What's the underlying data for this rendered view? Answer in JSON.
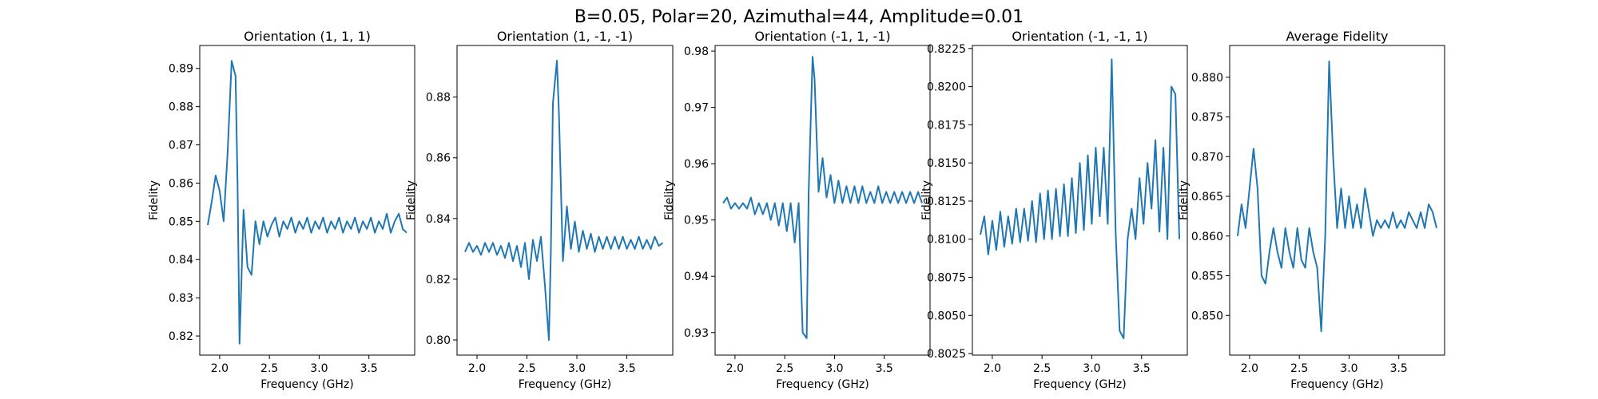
{
  "figure": {
    "suptitle": "B=0.05, Polar=20, Azimuthal=44, Amplitude=0.01"
  },
  "colors": {
    "line": "#1f77b4"
  },
  "chart_data": [
    {
      "type": "line",
      "title": "Orientation (1, 1, 1)",
      "xlabel": "Frequency (GHz)",
      "ylabel": "Fidelity",
      "xlim": [
        1.8,
        3.96
      ],
      "ylim": [
        0.815,
        0.896
      ],
      "xticks": [
        {
          "v": 2.0,
          "label": "2.0"
        },
        {
          "v": 2.5,
          "label": "2.5"
        },
        {
          "v": 3.0,
          "label": "3.0"
        },
        {
          "v": 3.5,
          "label": "3.5"
        }
      ],
      "yticks": [
        {
          "v": 0.82,
          "label": "0.82"
        },
        {
          "v": 0.83,
          "label": "0.83"
        },
        {
          "v": 0.84,
          "label": "0.84"
        },
        {
          "v": 0.85,
          "label": "0.85"
        },
        {
          "v": 0.86,
          "label": "0.86"
        },
        {
          "v": 0.87,
          "label": "0.87"
        },
        {
          "v": 0.88,
          "label": "0.88"
        },
        {
          "v": 0.89,
          "label": "0.89"
        }
      ],
      "series": [
        {
          "x": [
            1.88,
            1.92,
            1.96,
            2.0,
            2.04,
            2.08,
            2.12,
            2.16,
            2.18,
            2.2,
            2.24,
            2.28,
            2.32,
            2.36,
            2.4,
            2.44,
            2.48,
            2.52,
            2.56,
            2.6,
            2.64,
            2.68,
            2.72,
            2.76,
            2.8,
            2.84,
            2.88,
            2.92,
            2.96,
            3.0,
            3.04,
            3.08,
            3.12,
            3.16,
            3.2,
            3.24,
            3.28,
            3.32,
            3.36,
            3.4,
            3.44,
            3.48,
            3.52,
            3.56,
            3.6,
            3.64,
            3.68,
            3.72,
            3.76,
            3.8,
            3.84,
            3.88
          ],
          "y": [
            0.849,
            0.855,
            0.862,
            0.858,
            0.85,
            0.868,
            0.892,
            0.888,
            0.86,
            0.818,
            0.853,
            0.838,
            0.836,
            0.85,
            0.844,
            0.85,
            0.846,
            0.849,
            0.851,
            0.846,
            0.85,
            0.848,
            0.851,
            0.847,
            0.85,
            0.848,
            0.851,
            0.847,
            0.85,
            0.848,
            0.851,
            0.847,
            0.85,
            0.848,
            0.851,
            0.847,
            0.85,
            0.848,
            0.851,
            0.847,
            0.85,
            0.848,
            0.851,
            0.847,
            0.85,
            0.848,
            0.852,
            0.847,
            0.85,
            0.852,
            0.848,
            0.847
          ]
        }
      ]
    },
    {
      "type": "line",
      "title": "Orientation (1, -1, -1)",
      "xlabel": "Frequency (GHz)",
      "ylabel": "Fidelity",
      "xlim": [
        1.8,
        3.96
      ],
      "ylim": [
        0.795,
        0.897
      ],
      "xticks": [
        {
          "v": 2.0,
          "label": "2.0"
        },
        {
          "v": 2.5,
          "label": "2.5"
        },
        {
          "v": 3.0,
          "label": "3.0"
        },
        {
          "v": 3.5,
          "label": "3.5"
        }
      ],
      "yticks": [
        {
          "v": 0.8,
          "label": "0.80"
        },
        {
          "v": 0.82,
          "label": "0.82"
        },
        {
          "v": 0.84,
          "label": "0.84"
        },
        {
          "v": 0.86,
          "label": "0.86"
        },
        {
          "v": 0.88,
          "label": "0.88"
        }
      ],
      "series": [
        {
          "x": [
            1.88,
            1.92,
            1.96,
            2.0,
            2.04,
            2.08,
            2.12,
            2.16,
            2.2,
            2.24,
            2.28,
            2.32,
            2.36,
            2.4,
            2.44,
            2.48,
            2.52,
            2.56,
            2.6,
            2.64,
            2.68,
            2.72,
            2.74,
            2.76,
            2.8,
            2.82,
            2.86,
            2.9,
            2.94,
            2.98,
            3.02,
            3.06,
            3.1,
            3.14,
            3.18,
            3.22,
            3.26,
            3.3,
            3.34,
            3.38,
            3.42,
            3.46,
            3.5,
            3.54,
            3.58,
            3.62,
            3.66,
            3.7,
            3.74,
            3.78,
            3.82,
            3.86
          ],
          "y": [
            0.829,
            0.832,
            0.829,
            0.831,
            0.828,
            0.832,
            0.829,
            0.832,
            0.828,
            0.831,
            0.827,
            0.832,
            0.826,
            0.831,
            0.824,
            0.832,
            0.82,
            0.833,
            0.826,
            0.834,
            0.818,
            0.8,
            0.83,
            0.878,
            0.892,
            0.875,
            0.826,
            0.844,
            0.83,
            0.839,
            0.829,
            0.836,
            0.83,
            0.835,
            0.829,
            0.834,
            0.83,
            0.834,
            0.83,
            0.834,
            0.83,
            0.834,
            0.83,
            0.833,
            0.83,
            0.834,
            0.83,
            0.833,
            0.83,
            0.834,
            0.831,
            0.832
          ]
        }
      ]
    },
    {
      "type": "line",
      "title": "Orientation (-1, 1, -1)",
      "xlabel": "Frequency (GHz)",
      "ylabel": "Fidelity",
      "xlim": [
        1.8,
        3.96
      ],
      "ylim": [
        0.926,
        0.981
      ],
      "xticks": [
        {
          "v": 2.0,
          "label": "2.0"
        },
        {
          "v": 2.5,
          "label": "2.5"
        },
        {
          "v": 3.0,
          "label": "3.0"
        },
        {
          "v": 3.5,
          "label": "3.5"
        }
      ],
      "yticks": [
        {
          "v": 0.93,
          "label": "0.93"
        },
        {
          "v": 0.94,
          "label": "0.94"
        },
        {
          "v": 0.95,
          "label": "0.95"
        },
        {
          "v": 0.96,
          "label": "0.96"
        },
        {
          "v": 0.97,
          "label": "0.97"
        },
        {
          "v": 0.98,
          "label": "0.98"
        }
      ],
      "series": [
        {
          "x": [
            1.88,
            1.92,
            1.96,
            2.0,
            2.04,
            2.08,
            2.12,
            2.16,
            2.2,
            2.24,
            2.28,
            2.32,
            2.36,
            2.4,
            2.44,
            2.48,
            2.52,
            2.56,
            2.6,
            2.64,
            2.68,
            2.72,
            2.74,
            2.78,
            2.8,
            2.84,
            2.88,
            2.92,
            2.96,
            3.0,
            3.04,
            3.08,
            3.12,
            3.16,
            3.2,
            3.24,
            3.28,
            3.32,
            3.36,
            3.4,
            3.44,
            3.48,
            3.52,
            3.56,
            3.6,
            3.64,
            3.68,
            3.72,
            3.76,
            3.8,
            3.84,
            3.88
          ],
          "y": [
            0.953,
            0.954,
            0.952,
            0.953,
            0.952,
            0.953,
            0.952,
            0.954,
            0.951,
            0.953,
            0.951,
            0.953,
            0.95,
            0.953,
            0.949,
            0.953,
            0.948,
            0.953,
            0.946,
            0.953,
            0.93,
            0.929,
            0.955,
            0.979,
            0.975,
            0.955,
            0.961,
            0.954,
            0.958,
            0.953,
            0.957,
            0.953,
            0.956,
            0.953,
            0.956,
            0.953,
            0.956,
            0.953,
            0.955,
            0.953,
            0.956,
            0.953,
            0.955,
            0.953,
            0.955,
            0.953,
            0.955,
            0.953,
            0.955,
            0.953,
            0.955,
            0.953
          ]
        }
      ]
    },
    {
      "type": "line",
      "title": "Orientation (-1, -1, 1)",
      "xlabel": "Frequency (GHz)",
      "ylabel": "Fidelity",
      "xlim": [
        1.8,
        3.96
      ],
      "ylim": [
        0.8024,
        0.8227
      ],
      "xticks": [
        {
          "v": 2.0,
          "label": "2.0"
        },
        {
          "v": 2.5,
          "label": "2.5"
        },
        {
          "v": 3.0,
          "label": "3.0"
        },
        {
          "v": 3.5,
          "label": "3.5"
        }
      ],
      "yticks": [
        {
          "v": 0.8025,
          "label": "0.8025"
        },
        {
          "v": 0.805,
          "label": "0.8050"
        },
        {
          "v": 0.8075,
          "label": "0.8075"
        },
        {
          "v": 0.81,
          "label": "0.8100"
        },
        {
          "v": 0.8125,
          "label": "0.8125"
        },
        {
          "v": 0.815,
          "label": "0.8150"
        },
        {
          "v": 0.8175,
          "label": "0.8175"
        },
        {
          "v": 0.82,
          "label": "0.8200"
        },
        {
          "v": 0.8225,
          "label": "0.8225"
        }
      ],
      "series": [
        {
          "x": [
            1.88,
            1.92,
            1.96,
            2.0,
            2.04,
            2.08,
            2.12,
            2.16,
            2.2,
            2.24,
            2.28,
            2.32,
            2.36,
            2.4,
            2.44,
            2.48,
            2.52,
            2.56,
            2.6,
            2.64,
            2.68,
            2.72,
            2.76,
            2.8,
            2.84,
            2.88,
            2.92,
            2.96,
            3.0,
            3.04,
            3.08,
            3.12,
            3.16,
            3.2,
            3.24,
            3.28,
            3.32,
            3.36,
            3.4,
            3.44,
            3.48,
            3.52,
            3.56,
            3.6,
            3.64,
            3.68,
            3.72,
            3.76,
            3.8,
            3.84,
            3.88
          ],
          "y": [
            0.8103,
            0.8115,
            0.809,
            0.8112,
            0.8093,
            0.8118,
            0.8095,
            0.8115,
            0.8097,
            0.812,
            0.8098,
            0.812,
            0.8099,
            0.8125,
            0.8098,
            0.813,
            0.81,
            0.8132,
            0.81,
            0.8133,
            0.8102,
            0.8136,
            0.8102,
            0.814,
            0.8104,
            0.815,
            0.8106,
            0.8155,
            0.811,
            0.816,
            0.8115,
            0.816,
            0.811,
            0.8218,
            0.8105,
            0.804,
            0.8035,
            0.81,
            0.812,
            0.81,
            0.814,
            0.811,
            0.815,
            0.812,
            0.8165,
            0.8105,
            0.816,
            0.81,
            0.82,
            0.8195,
            0.81
          ]
        }
      ]
    },
    {
      "type": "line",
      "title": "Average Fidelity",
      "xlabel": "Frequency (GHz)",
      "ylabel": "Fidelity",
      "xlim": [
        1.8,
        3.96
      ],
      "ylim": [
        0.845,
        0.884
      ],
      "xticks": [
        {
          "v": 2.0,
          "label": "2.0"
        },
        {
          "v": 2.5,
          "label": "2.5"
        },
        {
          "v": 3.0,
          "label": "3.0"
        },
        {
          "v": 3.5,
          "label": "3.5"
        }
      ],
      "yticks": [
        {
          "v": 0.85,
          "label": "0.850"
        },
        {
          "v": 0.855,
          "label": "0.855"
        },
        {
          "v": 0.86,
          "label": "0.860"
        },
        {
          "v": 0.865,
          "label": "0.865"
        },
        {
          "v": 0.87,
          "label": "0.870"
        },
        {
          "v": 0.875,
          "label": "0.875"
        },
        {
          "v": 0.88,
          "label": "0.880"
        }
      ],
      "series": [
        {
          "x": [
            1.88,
            1.92,
            1.96,
            2.0,
            2.04,
            2.08,
            2.12,
            2.16,
            2.2,
            2.24,
            2.28,
            2.32,
            2.36,
            2.4,
            2.44,
            2.48,
            2.52,
            2.56,
            2.6,
            2.64,
            2.68,
            2.72,
            2.76,
            2.8,
            2.84,
            2.88,
            2.92,
            2.96,
            3.0,
            3.04,
            3.08,
            3.12,
            3.16,
            3.2,
            3.24,
            3.28,
            3.32,
            3.36,
            3.4,
            3.44,
            3.48,
            3.52,
            3.56,
            3.6,
            3.64,
            3.68,
            3.72,
            3.76,
            3.8,
            3.84,
            3.88
          ],
          "y": [
            0.86,
            0.864,
            0.861,
            0.866,
            0.871,
            0.866,
            0.855,
            0.854,
            0.858,
            0.861,
            0.858,
            0.856,
            0.861,
            0.858,
            0.856,
            0.861,
            0.857,
            0.856,
            0.861,
            0.858,
            0.856,
            0.848,
            0.86,
            0.882,
            0.87,
            0.861,
            0.866,
            0.861,
            0.865,
            0.861,
            0.864,
            0.861,
            0.866,
            0.863,
            0.86,
            0.862,
            0.861,
            0.862,
            0.861,
            0.863,
            0.861,
            0.862,
            0.861,
            0.863,
            0.862,
            0.861,
            0.863,
            0.861,
            0.864,
            0.863,
            0.861
          ]
        }
      ]
    }
  ]
}
